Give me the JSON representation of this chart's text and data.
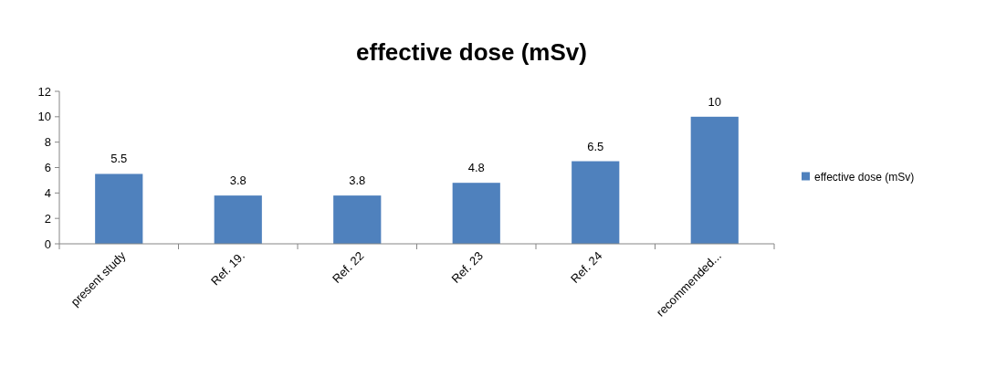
{
  "chart_data": {
    "type": "bar",
    "title": "effective dose (mSv)",
    "categories": [
      "present study",
      "Ref. 19.",
      "Ref. 22",
      "Ref. 23",
      "Ref. 24",
      "recommended..."
    ],
    "series": [
      {
        "name": "effective dose (mSv)",
        "color": "#4f81bd",
        "values": [
          5.5,
          3.8,
          3.8,
          4.8,
          6.5,
          10
        ]
      }
    ],
    "ylim": [
      0,
      12
    ],
    "yticks": [
      0,
      2,
      4,
      6,
      8,
      10,
      12
    ],
    "grid": false,
    "legend": "right",
    "data_labels": true
  }
}
